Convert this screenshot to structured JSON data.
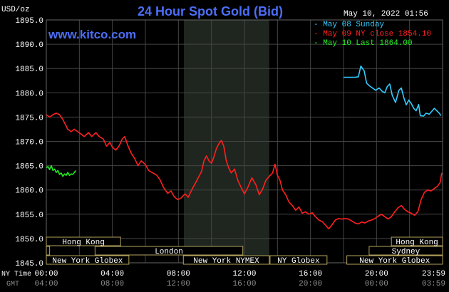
{
  "header": {
    "title": "24 Hour Spot Gold (Bid)",
    "units_label": "USD/oz",
    "timestamp": "May 10, 2022 01:56",
    "website": "www.kitco.com"
  },
  "colors": {
    "background": "#000000",
    "grid": "#444444",
    "title": "#4b6ef7",
    "axis_text": "#ffffff",
    "ny_session_shade": "#1f261f",
    "market_box_border": "#b3a35e",
    "market_box_fill": "#000000",
    "market_text": "#ffffff",
    "gmt_text": "#8c8c8c"
  },
  "chart_data": {
    "type": "line",
    "title": "24 Hour Spot Gold (Bid)",
    "ylabel": "USD/oz",
    "ylim": [
      1845,
      1895
    ],
    "y_ticks": [
      "1845.0",
      "1850.0",
      "1855.0",
      "1860.0",
      "1865.0",
      "1870.0",
      "1875.0",
      "1880.0",
      "1885.0",
      "1890.0",
      "1895.0"
    ],
    "x_hours": [
      0,
      4,
      8,
      12,
      16,
      20,
      24
    ],
    "x_ticks_ny": [
      "00:00",
      "04:00",
      "08:00",
      "12:00",
      "16:00",
      "20:00",
      "23:59"
    ],
    "x_ticks_gmt": [
      "04:00",
      "08:00",
      "12:00",
      "16:00",
      "20:00",
      "00:00",
      "03:59"
    ],
    "x_axis_labels": {
      "ny": "NY Time",
      "gmt": "GMT"
    },
    "shaded_region_hours": [
      8.33,
      13.5
    ],
    "legend": [
      {
        "text": "May 08 Sunday",
        "color": "#33ccff"
      },
      {
        "text": "May 09 NY close 1854.10",
        "color": "#ff2020"
      },
      {
        "text": "May 10 Last 1864.00",
        "color": "#22ee22"
      }
    ],
    "series": [
      {
        "name": "May 08 Sunday",
        "color": "#33ccff",
        "points": [
          [
            18.0,
            1883.2
          ],
          [
            18.7,
            1883.2
          ],
          [
            18.9,
            1883.3
          ],
          [
            19.05,
            1885.5
          ],
          [
            19.25,
            1884.5
          ],
          [
            19.4,
            1882.0
          ],
          [
            19.55,
            1881.5
          ],
          [
            19.75,
            1881.0
          ],
          [
            19.95,
            1880.5
          ],
          [
            20.15,
            1881.0
          ],
          [
            20.35,
            1880.3
          ],
          [
            20.5,
            1880.0
          ],
          [
            20.65,
            1881.3
          ],
          [
            20.8,
            1881.8
          ],
          [
            20.95,
            1879.5
          ],
          [
            21.15,
            1878.0
          ],
          [
            21.35,
            1880.5
          ],
          [
            21.5,
            1881.0
          ],
          [
            21.65,
            1879.0
          ],
          [
            21.8,
            1877.5
          ],
          [
            21.95,
            1878.5
          ],
          [
            22.1,
            1877.8
          ],
          [
            22.25,
            1876.8
          ],
          [
            22.4,
            1876.3
          ],
          [
            22.55,
            1877.6
          ],
          [
            22.65,
            1875.3
          ],
          [
            22.85,
            1875.2
          ],
          [
            23.0,
            1875.8
          ],
          [
            23.2,
            1875.6
          ],
          [
            23.35,
            1876.2
          ],
          [
            23.5,
            1876.8
          ],
          [
            23.65,
            1876.3
          ],
          [
            23.8,
            1875.8
          ],
          [
            23.9,
            1875.3
          ]
        ]
      },
      {
        "name": "May 09 NY close 1854.10",
        "color": "#ff2020",
        "points": [
          [
            0.0,
            1875.5
          ],
          [
            0.2,
            1875.0
          ],
          [
            0.4,
            1875.5
          ],
          [
            0.6,
            1875.8
          ],
          [
            0.8,
            1875.5
          ],
          [
            1.0,
            1874.5
          ],
          [
            1.15,
            1873.5
          ],
          [
            1.3,
            1872.5
          ],
          [
            1.5,
            1872.0
          ],
          [
            1.7,
            1872.5
          ],
          [
            1.9,
            1872.0
          ],
          [
            2.1,
            1871.5
          ],
          [
            2.3,
            1871.0
          ],
          [
            2.55,
            1871.8
          ],
          [
            2.75,
            1871.0
          ],
          [
            3.0,
            1871.8
          ],
          [
            3.2,
            1871.0
          ],
          [
            3.45,
            1870.5
          ],
          [
            3.65,
            1869.0
          ],
          [
            3.85,
            1869.8
          ],
          [
            4.0,
            1868.8
          ],
          [
            4.2,
            1868.2
          ],
          [
            4.4,
            1869.0
          ],
          [
            4.6,
            1870.5
          ],
          [
            4.75,
            1871.0
          ],
          [
            4.95,
            1869.0
          ],
          [
            5.15,
            1867.5
          ],
          [
            5.35,
            1866.5
          ],
          [
            5.55,
            1865.0
          ],
          [
            5.75,
            1866.0
          ],
          [
            6.0,
            1865.2
          ],
          [
            6.2,
            1864.0
          ],
          [
            6.45,
            1863.5
          ],
          [
            6.7,
            1863.0
          ],
          [
            6.9,
            1862.0
          ],
          [
            7.1,
            1860.5
          ],
          [
            7.35,
            1859.3
          ],
          [
            7.55,
            1859.8
          ],
          [
            7.75,
            1858.6
          ],
          [
            7.95,
            1858.0
          ],
          [
            8.15,
            1858.3
          ],
          [
            8.4,
            1859.2
          ],
          [
            8.6,
            1858.5
          ],
          [
            8.8,
            1860.0
          ],
          [
            9.0,
            1861.2
          ],
          [
            9.2,
            1862.5
          ],
          [
            9.4,
            1863.8
          ],
          [
            9.55,
            1866.0
          ],
          [
            9.7,
            1867.0
          ],
          [
            9.85,
            1866.0
          ],
          [
            10.0,
            1865.5
          ],
          [
            10.15,
            1866.8
          ],
          [
            10.3,
            1868.5
          ],
          [
            10.45,
            1869.5
          ],
          [
            10.6,
            1870.2
          ],
          [
            10.75,
            1869.0
          ],
          [
            10.9,
            1866.0
          ],
          [
            11.05,
            1864.5
          ],
          [
            11.2,
            1863.5
          ],
          [
            11.4,
            1864.3
          ],
          [
            11.6,
            1862.0
          ],
          [
            11.8,
            1860.5
          ],
          [
            12.0,
            1859.2
          ],
          [
            12.2,
            1860.5
          ],
          [
            12.45,
            1862.5
          ],
          [
            12.7,
            1861.0
          ],
          [
            12.9,
            1859.0
          ],
          [
            13.1,
            1860.2
          ],
          [
            13.3,
            1862.0
          ],
          [
            13.5,
            1862.8
          ],
          [
            13.7,
            1863.5
          ],
          [
            13.85,
            1865.3
          ],
          [
            14.0,
            1863.0
          ],
          [
            14.15,
            1862.0
          ],
          [
            14.3,
            1860.0
          ],
          [
            14.5,
            1859.0
          ],
          [
            14.7,
            1857.5
          ],
          [
            14.9,
            1856.8
          ],
          [
            15.1,
            1855.8
          ],
          [
            15.3,
            1856.5
          ],
          [
            15.5,
            1855.2
          ],
          [
            15.7,
            1855.5
          ],
          [
            15.9,
            1855.0
          ],
          [
            16.1,
            1855.3
          ],
          [
            16.3,
            1854.5
          ],
          [
            16.5,
            1853.8
          ],
          [
            16.7,
            1853.5
          ],
          [
            16.9,
            1852.8
          ],
          [
            17.1,
            1852.0
          ],
          [
            17.3,
            1852.8
          ],
          [
            17.5,
            1853.8
          ],
          [
            17.7,
            1854.1
          ],
          [
            17.9,
            1854.0
          ],
          [
            18.1,
            1854.1
          ],
          [
            18.3,
            1854.0
          ],
          [
            18.5,
            1853.6
          ],
          [
            18.7,
            1853.2
          ],
          [
            18.9,
            1853.0
          ],
          [
            19.1,
            1853.4
          ],
          [
            19.3,
            1853.2
          ],
          [
            19.5,
            1853.6
          ],
          [
            19.7,
            1853.8
          ],
          [
            19.9,
            1854.1
          ],
          [
            20.1,
            1854.6
          ],
          [
            20.3,
            1855.0
          ],
          [
            20.5,
            1854.5
          ],
          [
            20.7,
            1854.0
          ],
          [
            20.9,
            1854.5
          ],
          [
            21.1,
            1855.5
          ],
          [
            21.3,
            1856.3
          ],
          [
            21.5,
            1856.8
          ],
          [
            21.7,
            1856.0
          ],
          [
            21.9,
            1855.5
          ],
          [
            22.1,
            1855.2
          ],
          [
            22.3,
            1854.8
          ],
          [
            22.5,
            1855.5
          ],
          [
            22.7,
            1858.0
          ],
          [
            22.9,
            1859.5
          ],
          [
            23.1,
            1860.0
          ],
          [
            23.3,
            1859.8
          ],
          [
            23.5,
            1860.3
          ],
          [
            23.7,
            1860.8
          ],
          [
            23.85,
            1861.5
          ],
          [
            23.95,
            1863.5
          ]
        ]
      },
      {
        "name": "May 10 Last 1864.00",
        "color": "#22ee22",
        "points": [
          [
            0.0,
            1864.6
          ],
          [
            0.1,
            1864.8
          ],
          [
            0.2,
            1864.2
          ],
          [
            0.3,
            1865.0
          ],
          [
            0.4,
            1864.0
          ],
          [
            0.5,
            1864.3
          ],
          [
            0.6,
            1863.6
          ],
          [
            0.7,
            1864.0
          ],
          [
            0.8,
            1863.2
          ],
          [
            0.9,
            1863.5
          ],
          [
            1.0,
            1862.8
          ],
          [
            1.1,
            1863.3
          ],
          [
            1.2,
            1863.0
          ],
          [
            1.3,
            1863.6
          ],
          [
            1.4,
            1863.0
          ],
          [
            1.5,
            1863.3
          ],
          [
            1.6,
            1863.2
          ],
          [
            1.7,
            1863.6
          ],
          [
            1.78,
            1864.0
          ]
        ]
      }
    ]
  },
  "market_rows": [
    {
      "name": "row-asia",
      "sessions": [
        {
          "label": "Hong Kong",
          "start": 0,
          "end": 4.5
        },
        {
          "label": "Hong Kong",
          "start": 20.9,
          "end": 24
        }
      ]
    },
    {
      "name": "row-europe",
      "sessions": [
        {
          "label": "",
          "start": 0,
          "end": 0.2
        },
        {
          "label": "London",
          "start": 2.95,
          "end": 11.9
        },
        {
          "label": "Sydney",
          "start": 19.55,
          "end": 24
        }
      ]
    },
    {
      "name": "row-ny",
      "sessions": [
        {
          "label": "New York Globex",
          "start": 0,
          "end": 5.0
        },
        {
          "label": "New York NYMEX",
          "start": 8.3,
          "end": 13.5
        },
        {
          "label": "NY Globex",
          "start": 13.55,
          "end": 17.0
        },
        {
          "label": "New York Globex",
          "start": 18.2,
          "end": 24
        }
      ]
    }
  ]
}
